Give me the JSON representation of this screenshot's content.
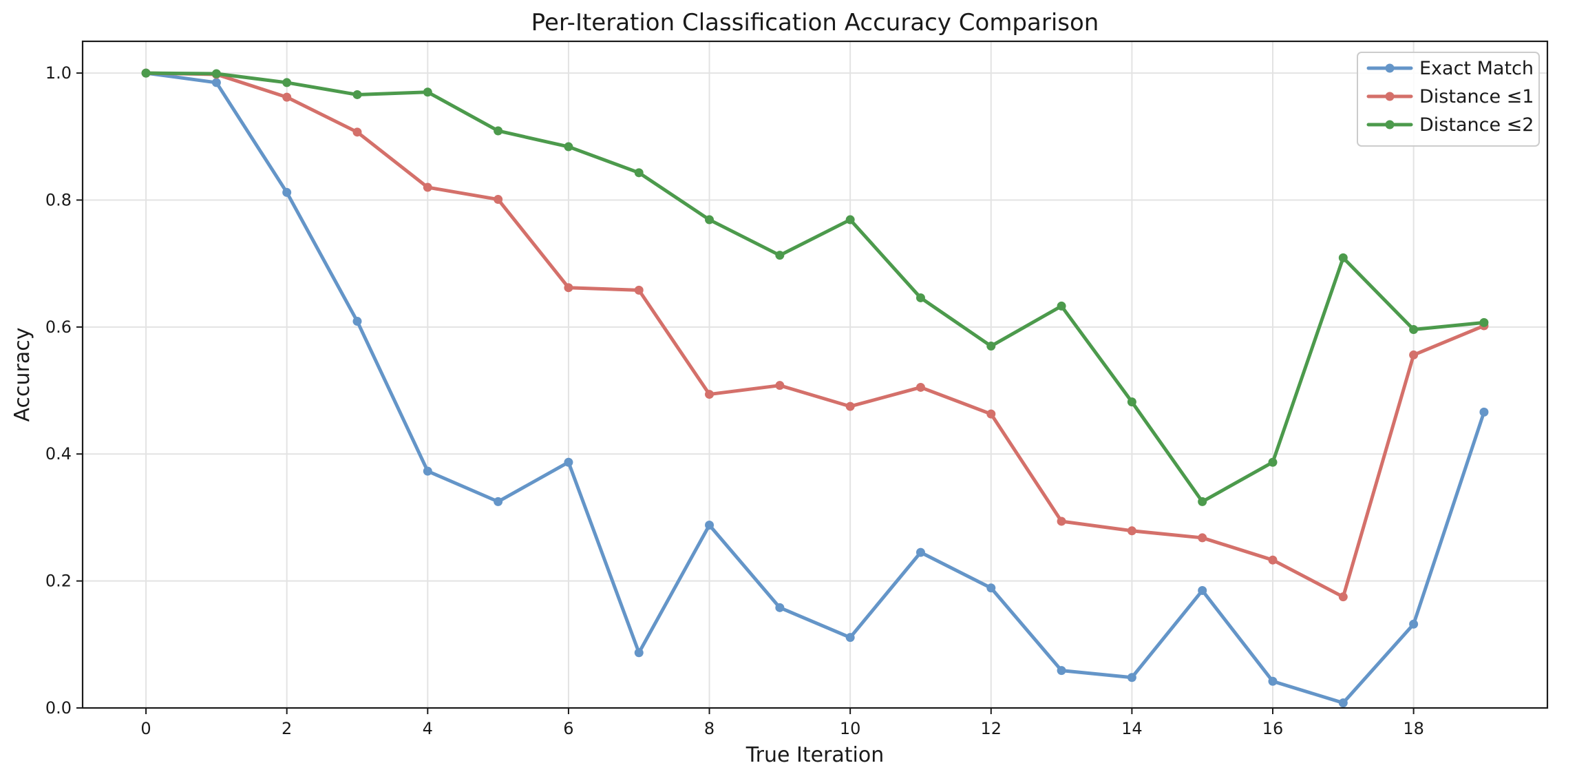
{
  "chart_data": {
    "type": "line",
    "title": "Per-Iteration Classification Accuracy Comparison",
    "xlabel": "True Iteration",
    "ylabel": "Accuracy",
    "xlim": [
      -0.9,
      19.9
    ],
    "ylim": [
      0,
      1.05
    ],
    "x_ticks": [
      0,
      2,
      4,
      6,
      8,
      10,
      12,
      14,
      16,
      18
    ],
    "x_tick_labels": [
      "0",
      "2",
      "4",
      "6",
      "8",
      "10",
      "12",
      "14",
      "16",
      "18"
    ],
    "y_ticks": [
      0.0,
      0.2,
      0.4,
      0.6,
      0.8,
      1.0
    ],
    "y_tick_labels": [
      "0.0",
      "0.2",
      "0.4",
      "0.6",
      "0.8",
      "1.0"
    ],
    "grid": true,
    "legend_position": "top-right",
    "x": [
      0,
      1,
      2,
      3,
      4,
      5,
      6,
      7,
      8,
      9,
      10,
      11,
      12,
      13,
      14,
      15,
      16,
      17,
      18,
      19
    ],
    "series": [
      {
        "name": "Exact Match",
        "color": "#6495c8",
        "values": [
          1.0,
          0.985,
          0.812,
          0.609,
          0.373,
          0.325,
          0.387,
          0.087,
          0.288,
          0.158,
          0.111,
          0.245,
          0.189,
          0.059,
          0.048,
          0.185,
          0.042,
          0.008,
          0.132,
          0.466
        ]
      },
      {
        "name": "Distance ≤1",
        "color": "#d4706a",
        "values": [
          1.0,
          0.998,
          0.962,
          0.907,
          0.82,
          0.801,
          0.662,
          0.658,
          0.494,
          0.508,
          0.475,
          0.505,
          0.463,
          0.294,
          0.279,
          0.268,
          0.233,
          0.175,
          0.556,
          0.602
        ]
      },
      {
        "name": "Distance ≤2",
        "color": "#4c9a4c",
        "values": [
          1.0,
          0.999,
          0.985,
          0.966,
          0.97,
          0.909,
          0.884,
          0.843,
          0.769,
          0.713,
          0.769,
          0.646,
          0.57,
          0.633,
          0.482,
          0.325,
          0.387,
          0.709,
          0.596,
          0.607
        ]
      }
    ]
  }
}
